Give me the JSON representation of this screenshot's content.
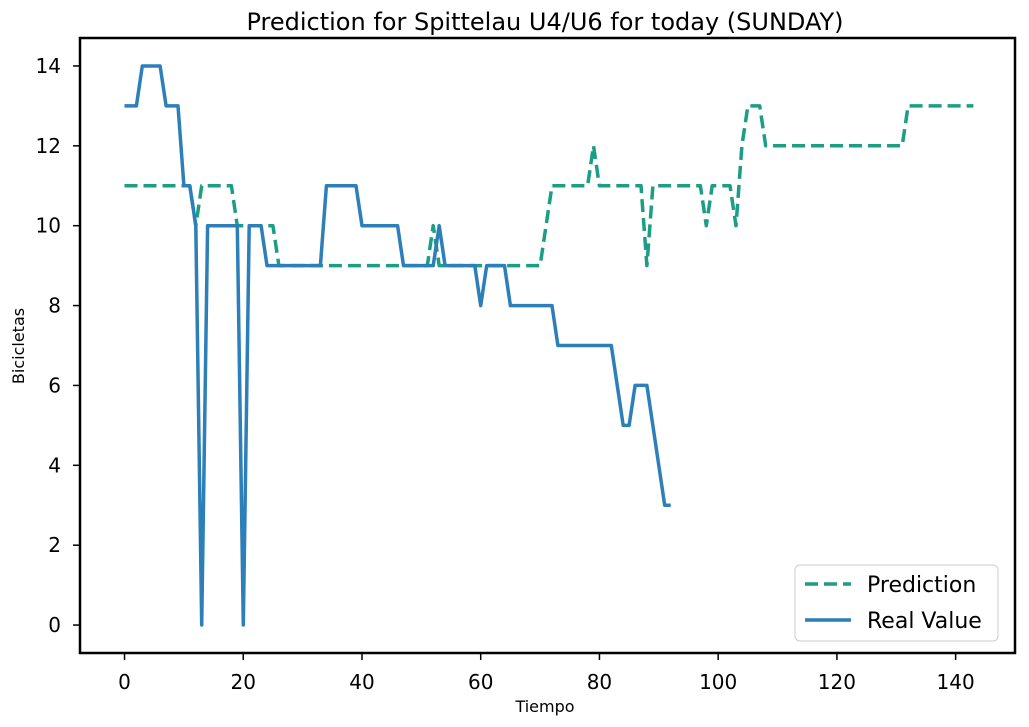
{
  "chart_data": {
    "type": "line",
    "title": "Prediction for Spittelau U4/U6 for today (SUNDAY)",
    "xlabel": "Tiempo",
    "ylabel": "Bicicletas",
    "xlim": [
      -7.5,
      150
    ],
    "ylim": [
      -0.7,
      14.7
    ],
    "xticks": [
      0,
      20,
      40,
      60,
      80,
      100,
      120,
      140
    ],
    "yticks": [
      0,
      2,
      4,
      6,
      8,
      10,
      12,
      14
    ],
    "grid": false,
    "legend_position": "lower-right",
    "series": [
      {
        "name": "Prediction",
        "style": "dashed",
        "color": "#1b9e84",
        "points": [
          [
            0,
            11
          ],
          [
            11,
            11
          ],
          [
            12,
            10
          ],
          [
            13,
            11
          ],
          [
            17,
            11
          ],
          [
            18,
            11
          ],
          [
            19,
            10
          ],
          [
            20,
            10
          ],
          [
            21,
            10
          ],
          [
            24,
            10
          ],
          [
            25,
            10
          ],
          [
            26,
            9
          ],
          [
            51,
            9
          ],
          [
            52,
            10
          ],
          [
            53,
            9
          ],
          [
            69,
            9
          ],
          [
            70,
            9
          ],
          [
            72,
            11
          ],
          [
            78,
            11
          ],
          [
            79,
            12
          ],
          [
            80,
            11
          ],
          [
            87,
            11
          ],
          [
            88,
            9
          ],
          [
            89,
            11
          ],
          [
            97,
            11
          ],
          [
            98,
            10
          ],
          [
            99,
            11
          ],
          [
            102,
            11
          ],
          [
            103,
            10
          ],
          [
            104,
            12
          ],
          [
            105,
            13
          ],
          [
            107,
            13
          ],
          [
            108,
            12
          ],
          [
            131,
            12
          ],
          [
            132,
            13
          ],
          [
            143,
            13
          ]
        ]
      },
      {
        "name": "Real Value",
        "style": "solid",
        "color": "#2c7fb8",
        "points": [
          [
            0,
            13
          ],
          [
            2,
            13
          ],
          [
            3,
            14
          ],
          [
            6,
            14
          ],
          [
            7,
            13
          ],
          [
            9,
            13
          ],
          [
            10,
            11
          ],
          [
            11,
            11
          ],
          [
            12,
            10
          ],
          [
            13,
            0
          ],
          [
            14,
            10
          ],
          [
            19,
            10
          ],
          [
            20,
            0
          ],
          [
            21,
            10
          ],
          [
            23,
            10
          ],
          [
            24,
            9
          ],
          [
            33,
            9
          ],
          [
            34,
            11
          ],
          [
            39,
            11
          ],
          [
            40,
            10
          ],
          [
            46,
            10
          ],
          [
            47,
            9
          ],
          [
            52,
            9
          ],
          [
            53,
            10
          ],
          [
            54,
            9
          ],
          [
            59,
            9
          ],
          [
            60,
            8
          ],
          [
            61,
            9
          ],
          [
            64,
            9
          ],
          [
            65,
            8
          ],
          [
            72,
            8
          ],
          [
            73,
            7
          ],
          [
            82,
            7
          ],
          [
            84,
            5
          ],
          [
            85,
            5
          ],
          [
            86,
            6
          ],
          [
            88,
            6
          ],
          [
            91,
            3
          ],
          [
            92,
            3
          ]
        ]
      }
    ]
  }
}
